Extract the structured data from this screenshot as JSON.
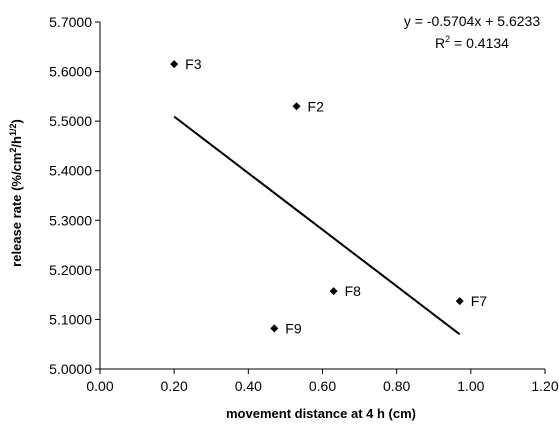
{
  "chart_data": {
    "type": "scatter",
    "xlabel": "movement distance at 4 h (cm)",
    "ylabel": {
      "prefix": "release rate (%/cm",
      "sup1": "2",
      "mid": "/h",
      "sup2": "1/2",
      "suffix": ")"
    },
    "xlim": [
      0,
      1.2
    ],
    "ylim": [
      5.0,
      5.7
    ],
    "x_ticks": [
      "0.00",
      "0.20",
      "0.40",
      "0.60",
      "0.80",
      "1.00",
      "1.20"
    ],
    "y_ticks": [
      "5.0000",
      "5.1000",
      "5.2000",
      "5.3000",
      "5.4000",
      "5.5000",
      "5.6000",
      "5.7000"
    ],
    "points": [
      {
        "label": "F3",
        "x": 0.2,
        "y": 5.615
      },
      {
        "label": "F2",
        "x": 0.53,
        "y": 5.53
      },
      {
        "label": "F8",
        "x": 0.63,
        "y": 5.157
      },
      {
        "label": "F7",
        "x": 0.97,
        "y": 5.137
      },
      {
        "label": "F9",
        "x": 0.47,
        "y": 5.082
      }
    ],
    "trendline": {
      "slope": -0.5704,
      "intercept": 5.6233,
      "x_start": 0.2,
      "x_end": 0.97
    },
    "equation": {
      "line1": "y = -0.5704x + 5.6233",
      "r2_prefix": "R",
      "r2_sup": "2",
      "r2_value": " = 0.4134"
    },
    "grid": false,
    "legend": "none"
  }
}
